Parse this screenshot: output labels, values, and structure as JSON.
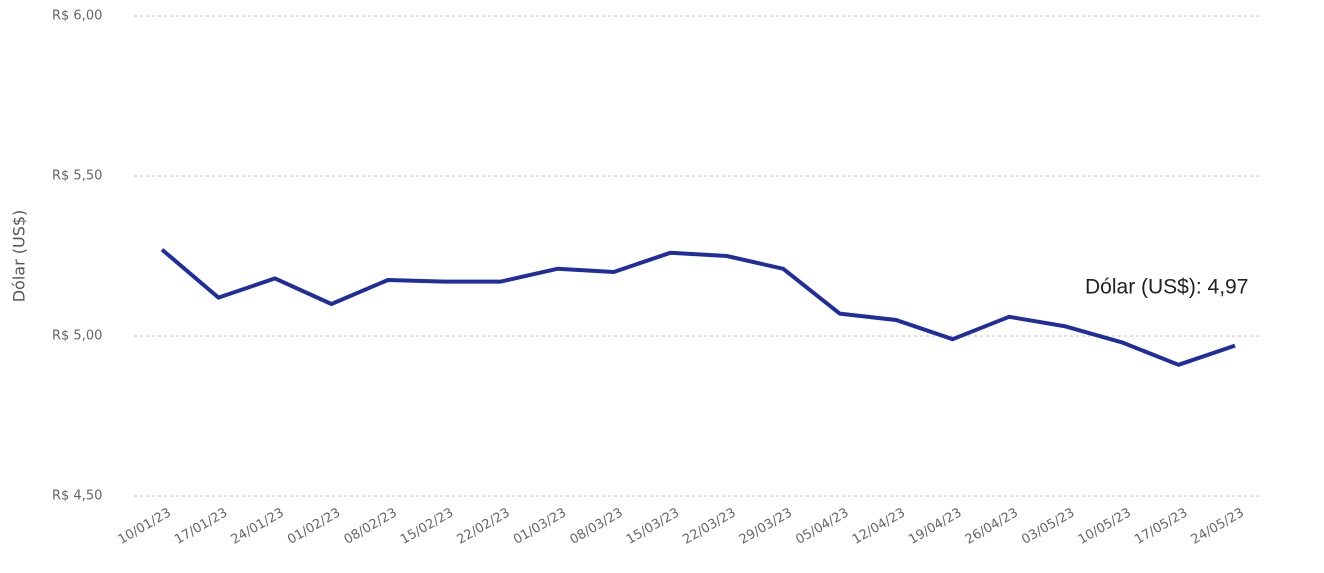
{
  "chart_data": {
    "type": "line",
    "y_label": "Dólar (US$)",
    "annotation": "Dólar (US$): 4,97",
    "categories": [
      "10/01/23",
      "17/01/23",
      "24/01/23",
      "01/02/23",
      "08/02/23",
      "15/02/23",
      "22/02/23",
      "01/03/23",
      "08/03/23",
      "15/03/23",
      "22/03/23",
      "29/03/23",
      "05/04/23",
      "12/04/23",
      "19/04/23",
      "26/04/23",
      "03/05/23",
      "10/05/23",
      "17/05/23",
      "24/05/23"
    ],
    "series": [
      {
        "name": "Dólar (US$)",
        "color": "#1f2e9c",
        "values": [
          5.27,
          5.12,
          5.18,
          5.1,
          5.175,
          5.17,
          5.17,
          5.21,
          5.2,
          5.26,
          5.25,
          5.21,
          5.07,
          5.05,
          4.99,
          5.06,
          5.03,
          4.98,
          4.91,
          4.97
        ]
      }
    ],
    "ylim": [
      4.5,
      6.0
    ],
    "yticks": [
      {
        "value": 4.5,
        "label": "R$ 4,50"
      },
      {
        "value": 5.0,
        "label": "R$ 5,00"
      },
      {
        "value": 5.5,
        "label": "R$ 5,50"
      },
      {
        "value": 6.0,
        "label": "R$ 6,00"
      }
    ],
    "grid": true
  }
}
